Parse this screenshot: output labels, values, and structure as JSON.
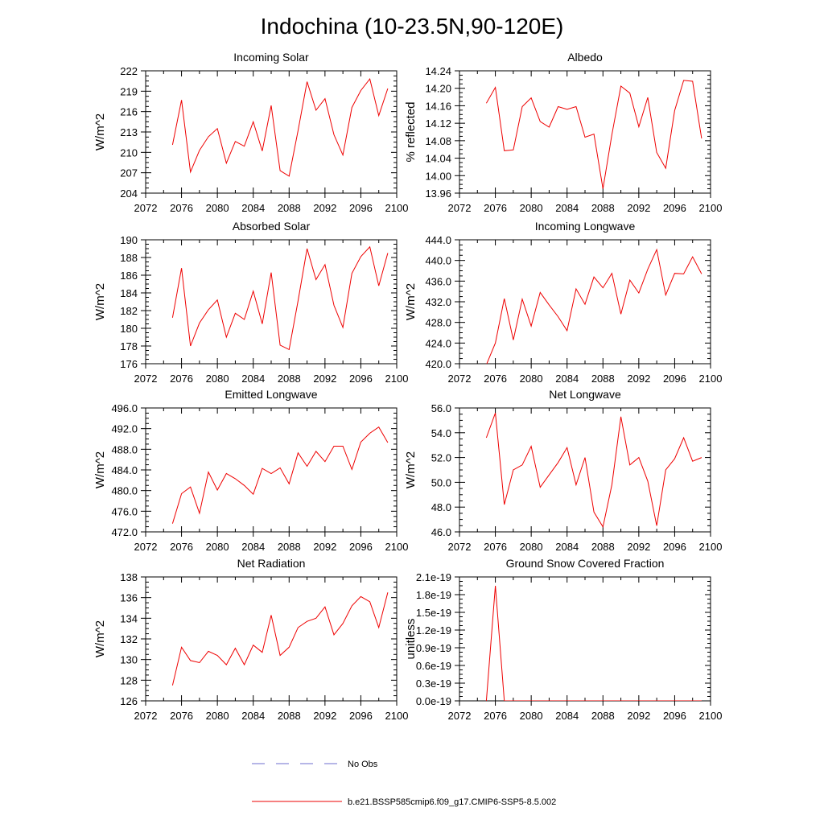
{
  "title": "Indochina (10-23.5N,90-120E)",
  "legend": [
    {
      "label": "No Obs",
      "style": "dashed",
      "color": "#6e6ecf"
    },
    {
      "label": "b.e21.BSSP585cmip6.f09_g17.CMIP6-SSP5-8.5.002",
      "style": "solid",
      "color": "#ee0000"
    }
  ],
  "colors": {
    "series": "#ee0000",
    "obs": "#6e6ecf",
    "axis": "#000000"
  },
  "chart_data": [
    {
      "type": "line",
      "title": "Incoming Solar",
      "ylabel": "W/m^2",
      "xlim": [
        2072,
        2100
      ],
      "xticks": [
        "2072",
        "2076",
        "2080",
        "2084",
        "2088",
        "2092",
        "2096",
        "2100"
      ],
      "ylim": [
        204,
        222
      ],
      "yticks": [
        "204",
        "207",
        "210",
        "213",
        "216",
        "219",
        "222"
      ],
      "x": [
        2075,
        2076,
        2077,
        2078,
        2079,
        2080,
        2081,
        2082,
        2083,
        2084,
        2085,
        2086,
        2087,
        2088,
        2089,
        2090,
        2091,
        2092,
        2093,
        2094,
        2095,
        2096,
        2097,
        2098,
        2099
      ],
      "series": [
        {
          "name": "b.e21.BSSP585cmip6.f09_g17.CMIP6-SSP5-8.5.002",
          "values": [
            211.1,
            217.7,
            207.1,
            210.3,
            212.3,
            213.5,
            208.4,
            211.6,
            210.9,
            214.5,
            210.2,
            216.9,
            207.3,
            206.5,
            213.2,
            220.4,
            216.2,
            217.9,
            212.6,
            209.6,
            216.6,
            219.1,
            220.8,
            215.4,
            219.4
          ]
        }
      ]
    },
    {
      "type": "line",
      "title": "Albedo",
      "ylabel": "% reflected",
      "xlim": [
        2072,
        2100
      ],
      "xticks": [
        "2072",
        "2076",
        "2080",
        "2084",
        "2088",
        "2092",
        "2096",
        "2100"
      ],
      "ylim": [
        13.96,
        14.24
      ],
      "yticks": [
        "13.96",
        "14.00",
        "14.04",
        "14.08",
        "14.12",
        "14.16",
        "14.20",
        "14.24"
      ],
      "x": [
        2075,
        2076,
        2077,
        2078,
        2079,
        2080,
        2081,
        2082,
        2083,
        2084,
        2085,
        2086,
        2087,
        2088,
        2089,
        2090,
        2091,
        2092,
        2093,
        2094,
        2095,
        2096,
        2097,
        2098,
        2099
      ],
      "series": [
        {
          "name": "b.e21.BSSP585cmip6.f09_g17.CMIP6-SSP5-8.5.002",
          "values": [
            14.166,
            14.202,
            14.057,
            14.059,
            14.158,
            14.178,
            14.124,
            14.111,
            14.158,
            14.152,
            14.158,
            14.088,
            14.095,
            13.97,
            14.094,
            14.205,
            14.189,
            14.112,
            14.179,
            14.053,
            14.017,
            14.149,
            14.218,
            14.216,
            14.085
          ]
        }
      ]
    },
    {
      "type": "line",
      "title": "Absorbed Solar",
      "ylabel": "W/m^2",
      "xlim": [
        2072,
        2100
      ],
      "xticks": [
        "2072",
        "2076",
        "2080",
        "2084",
        "2088",
        "2092",
        "2096",
        "2100"
      ],
      "ylim": [
        176,
        190
      ],
      "yticks": [
        "176",
        "178",
        "180",
        "182",
        "184",
        "186",
        "188",
        "190"
      ],
      "x": [
        2075,
        2076,
        2077,
        2078,
        2079,
        2080,
        2081,
        2082,
        2083,
        2084,
        2085,
        2086,
        2087,
        2088,
        2089,
        2090,
        2091,
        2092,
        2093,
        2094,
        2095,
        2096,
        2097,
        2098,
        2099
      ],
      "series": [
        {
          "name": "b.e21.BSSP585cmip6.f09_g17.CMIP6-SSP5-8.5.002",
          "values": [
            181.2,
            186.8,
            178.0,
            180.6,
            182.1,
            183.2,
            179.0,
            181.7,
            181.0,
            184.2,
            180.5,
            186.3,
            178.1,
            177.6,
            183.1,
            189.0,
            185.5,
            187.2,
            182.6,
            180.1,
            186.2,
            188.1,
            189.2,
            184.8,
            188.5
          ]
        }
      ]
    },
    {
      "type": "line",
      "title": "Incoming Longwave",
      "ylabel": "W/m^2",
      "xlim": [
        2072,
        2100
      ],
      "xticks": [
        "2072",
        "2076",
        "2080",
        "2084",
        "2088",
        "2092",
        "2096",
        "2100"
      ],
      "ylim": [
        420,
        444
      ],
      "yticks": [
        "420.0",
        "424.0",
        "428.0",
        "432.0",
        "436.0",
        "440.0",
        "444.0"
      ],
      "x": [
        2075,
        2076,
        2077,
        2078,
        2079,
        2080,
        2081,
        2082,
        2083,
        2084,
        2085,
        2086,
        2087,
        2088,
        2089,
        2090,
        2091,
        2092,
        2093,
        2094,
        2095,
        2096,
        2097,
        2098,
        2099
      ],
      "series": [
        {
          "name": "b.e21.BSSP585cmip6.f09_g17.CMIP6-SSP5-8.5.002",
          "values": [
            419.8,
            424.0,
            432.6,
            424.6,
            432.5,
            427.3,
            433.8,
            431.4,
            429.1,
            426.4,
            434.5,
            431.5,
            436.8,
            434.7,
            437.5,
            429.6,
            436.2,
            433.7,
            438.3,
            442.1,
            433.3,
            437.5,
            437.4,
            440.7,
            437.4
          ]
        }
      ]
    },
    {
      "type": "line",
      "title": "Emitted Longwave",
      "ylabel": "W/m^2",
      "xlim": [
        2072,
        2100
      ],
      "xticks": [
        "2072",
        "2076",
        "2080",
        "2084",
        "2088",
        "2092",
        "2096",
        "2100"
      ],
      "ylim": [
        472,
        496
      ],
      "yticks": [
        "472.0",
        "476.0",
        "480.0",
        "484.0",
        "488.0",
        "492.0",
        "496.0"
      ],
      "x": [
        2075,
        2076,
        2077,
        2078,
        2079,
        2080,
        2081,
        2082,
        2083,
        2084,
        2085,
        2086,
        2087,
        2088,
        2089,
        2090,
        2091,
        2092,
        2093,
        2094,
        2095,
        2096,
        2097,
        2098,
        2099
      ],
      "series": [
        {
          "name": "b.e21.BSSP585cmip6.f09_g17.CMIP6-SSP5-8.5.002",
          "values": [
            473.6,
            479.4,
            480.7,
            475.6,
            483.6,
            480.1,
            483.3,
            482.3,
            481.0,
            479.3,
            484.3,
            483.3,
            484.4,
            481.3,
            487.3,
            484.7,
            487.6,
            485.6,
            488.6,
            488.6,
            484.1,
            489.4,
            491.1,
            492.3,
            489.3
          ]
        }
      ]
    },
    {
      "type": "line",
      "title": "Net Longwave",
      "ylabel": "W/m^2",
      "xlim": [
        2072,
        2100
      ],
      "xticks": [
        "2072",
        "2076",
        "2080",
        "2084",
        "2088",
        "2092",
        "2096",
        "2100"
      ],
      "ylim": [
        46,
        56
      ],
      "yticks": [
        "46.0",
        "48.0",
        "50.0",
        "52.0",
        "54.0",
        "56.0"
      ],
      "x": [
        2075,
        2076,
        2077,
        2078,
        2079,
        2080,
        2081,
        2082,
        2083,
        2084,
        2085,
        2086,
        2087,
        2088,
        2089,
        2090,
        2091,
        2092,
        2093,
        2094,
        2095,
        2096,
        2097,
        2098,
        2099
      ],
      "series": [
        {
          "name": "b.e21.BSSP585cmip6.f09_g17.CMIP6-SSP5-8.5.002",
          "values": [
            53.6,
            55.6,
            48.2,
            51.0,
            51.4,
            52.9,
            49.6,
            50.6,
            51.6,
            52.8,
            49.8,
            52.0,
            47.6,
            46.4,
            49.8,
            55.3,
            51.4,
            52.0,
            50.1,
            46.5,
            51.0,
            51.9,
            53.6,
            51.7,
            52.0
          ]
        }
      ]
    },
    {
      "type": "line",
      "title": "Net Radiation",
      "ylabel": "W/m^2",
      "xlim": [
        2072,
        2100
      ],
      "xticks": [
        "2072",
        "2076",
        "2080",
        "2084",
        "2088",
        "2092",
        "2096",
        "2100"
      ],
      "ylim": [
        126,
        138
      ],
      "yticks": [
        "126",
        "128",
        "130",
        "132",
        "134",
        "136",
        "138"
      ],
      "x": [
        2075,
        2076,
        2077,
        2078,
        2079,
        2080,
        2081,
        2082,
        2083,
        2084,
        2085,
        2086,
        2087,
        2088,
        2089,
        2090,
        2091,
        2092,
        2093,
        2094,
        2095,
        2096,
        2097,
        2098,
        2099
      ],
      "series": [
        {
          "name": "b.e21.BSSP585cmip6.f09_g17.CMIP6-SSP5-8.5.002",
          "values": [
            127.5,
            131.2,
            129.9,
            129.7,
            130.8,
            130.4,
            129.5,
            131.1,
            129.5,
            131.4,
            130.7,
            134.3,
            130.4,
            131.2,
            133.1,
            133.7,
            134.0,
            135.1,
            132.4,
            133.5,
            135.2,
            136.1,
            135.6,
            133.1,
            136.5
          ]
        }
      ]
    },
    {
      "type": "line",
      "title": "Ground Snow Covered Fraction",
      "ylabel": "unitless",
      "xlim": [
        2072,
        2100
      ],
      "xticks": [
        "2072",
        "2076",
        "2080",
        "2084",
        "2088",
        "2092",
        "2096",
        "2100"
      ],
      "ylim": [
        0,
        2.1
      ],
      "yticks": [
        "0.0e-19",
        "0.3e-19",
        "0.6e-19",
        "0.9e-19",
        "1.2e-19",
        "1.5e-19",
        "1.8e-19",
        "2.1e-19"
      ],
      "yunit_note": "e-19",
      "x": [
        2075,
        2076,
        2077,
        2078,
        2079,
        2080,
        2081,
        2082,
        2083,
        2084,
        2085,
        2086,
        2087,
        2088,
        2089,
        2090,
        2091,
        2092,
        2093,
        2094,
        2095,
        2096,
        2097,
        2098,
        2099
      ],
      "series": [
        {
          "name": "b.e21.BSSP585cmip6.f09_g17.CMIP6-SSP5-8.5.002",
          "values": [
            0.0,
            1.95,
            0.0,
            0.0,
            0.0,
            0.0,
            0.0,
            0.0,
            0.0,
            0.0,
            0.0,
            0.0,
            0.0,
            0.0,
            0.0,
            0.0,
            0.0,
            0.0,
            0.0,
            0.0,
            0.0,
            0.0,
            0.0,
            0.0,
            0.0
          ]
        }
      ]
    }
  ]
}
